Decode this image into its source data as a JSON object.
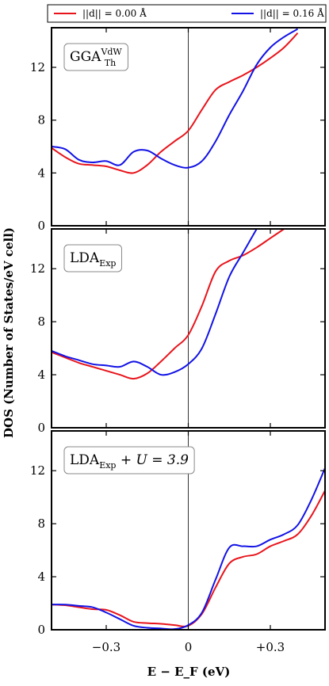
{
  "chart_data": {
    "type": "line",
    "xlabel": "E − E_F (eV)",
    "ylabel": "DOS (Number of States/eV cell)",
    "xlim": [
      -0.5,
      0.5
    ],
    "xticks": [
      -0.3,
      0,
      0.3
    ],
    "xtick_labels": [
      "−0.3",
      "0",
      "+0.3"
    ],
    "ylim": [
      0,
      15
    ],
    "yticks": [
      0,
      4,
      8,
      12
    ],
    "legend": {
      "placement": "top",
      "entries": [
        {
          "name": "||d|| = 0.00 Å",
          "color": "#e8141b"
        },
        {
          "name": "||d|| = 0.16 Å",
          "color": "#1212e6"
        }
      ]
    },
    "panels": [
      {
        "label": {
          "main": "GGA",
          "sup": "VdW",
          "sub": "Th",
          "extra": ""
        },
        "series": [
          {
            "name": "||d|| = 0.00 Å",
            "color": "#e8141b",
            "x": [
              -0.5,
              -0.45,
              -0.4,
              -0.35,
              -0.3,
              -0.25,
              -0.2,
              -0.15,
              -0.1,
              -0.05,
              0,
              0.05,
              0.1,
              0.15,
              0.2,
              0.25,
              0.3,
              0.35,
              0.4
            ],
            "y": [
              5.9,
              5.2,
              4.7,
              4.6,
              4.5,
              4.2,
              4.0,
              4.6,
              5.6,
              6.4,
              7.2,
              8.8,
              10.3,
              10.9,
              11.4,
              12.0,
              12.7,
              13.5,
              14.6
            ]
          },
          {
            "name": "||d|| = 0.16 Å",
            "color": "#1212e6",
            "x": [
              -0.5,
              -0.45,
              -0.4,
              -0.35,
              -0.3,
              -0.25,
              -0.2,
              -0.15,
              -0.1,
              -0.05,
              0,
              0.05,
              0.1,
              0.15,
              0.2,
              0.25,
              0.3,
              0.35,
              0.4
            ],
            "y": [
              6.0,
              5.8,
              5.0,
              4.8,
              4.9,
              4.6,
              5.6,
              5.7,
              5.1,
              4.6,
              4.4,
              4.9,
              6.4,
              8.4,
              10.2,
              12.2,
              13.5,
              14.3,
              14.9
            ]
          }
        ]
      },
      {
        "label": {
          "main": "LDA",
          "sup": "",
          "sub": "Exp",
          "extra": ""
        },
        "series": [
          {
            "name": "||d|| = 0.00 Å",
            "color": "#e8141b",
            "x": [
              -0.5,
              -0.45,
              -0.4,
              -0.35,
              -0.3,
              -0.25,
              -0.2,
              -0.15,
              -0.1,
              -0.05,
              0,
              0.05,
              0.1,
              0.15,
              0.2,
              0.25,
              0.3,
              0.35
            ],
            "y": [
              5.7,
              5.3,
              4.9,
              4.6,
              4.3,
              4.0,
              3.7,
              4.1,
              5.0,
              6.0,
              7.0,
              9.2,
              11.8,
              12.6,
              13.0,
              13.6,
              14.3,
              15.0
            ]
          },
          {
            "name": "||d|| = 0.16 Å",
            "color": "#1212e6",
            "x": [
              -0.5,
              -0.45,
              -0.4,
              -0.35,
              -0.3,
              -0.25,
              -0.2,
              -0.15,
              -0.1,
              -0.05,
              0,
              0.05,
              0.1,
              0.15,
              0.2,
              0.25
            ],
            "y": [
              5.8,
              5.4,
              5.1,
              4.8,
              4.7,
              4.6,
              5.0,
              4.6,
              4.0,
              4.2,
              4.8,
              6.0,
              8.6,
              11.4,
              13.2,
              15.0
            ]
          }
        ]
      },
      {
        "label": {
          "main": "LDA",
          "sup": "",
          "sub": "Exp",
          "extra": " + U = 3.9"
        },
        "series": [
          {
            "name": "||d|| = 0.00 Å",
            "color": "#e8141b",
            "x": [
              -0.5,
              -0.45,
              -0.4,
              -0.35,
              -0.3,
              -0.25,
              -0.2,
              -0.15,
              -0.1,
              -0.05,
              0,
              0.05,
              0.1,
              0.15,
              0.2,
              0.25,
              0.3,
              0.35,
              0.4,
              0.45,
              0.5
            ],
            "y": [
              1.9,
              1.85,
              1.7,
              1.55,
              1.5,
              1.1,
              0.6,
              0.5,
              0.45,
              0.35,
              0.3,
              1.2,
              3.2,
              5.0,
              5.5,
              5.7,
              6.3,
              6.7,
              7.2,
              8.6,
              10.5
            ]
          },
          {
            "name": "||d|| = 0.16 Å",
            "color": "#1212e6",
            "x": [
              -0.5,
              -0.45,
              -0.4,
              -0.35,
              -0.3,
              -0.25,
              -0.2,
              -0.15,
              -0.1,
              -0.05,
              0,
              0.05,
              0.1,
              0.15,
              0.2,
              0.25,
              0.3,
              0.35,
              0.4,
              0.45,
              0.5
            ],
            "y": [
              1.9,
              1.9,
              1.8,
              1.7,
              1.3,
              0.8,
              0.3,
              0.15,
              0.1,
              0.05,
              0.35,
              1.3,
              3.8,
              6.2,
              6.3,
              6.3,
              6.8,
              7.2,
              7.9,
              9.8,
              12.2
            ]
          }
        ]
      }
    ]
  }
}
